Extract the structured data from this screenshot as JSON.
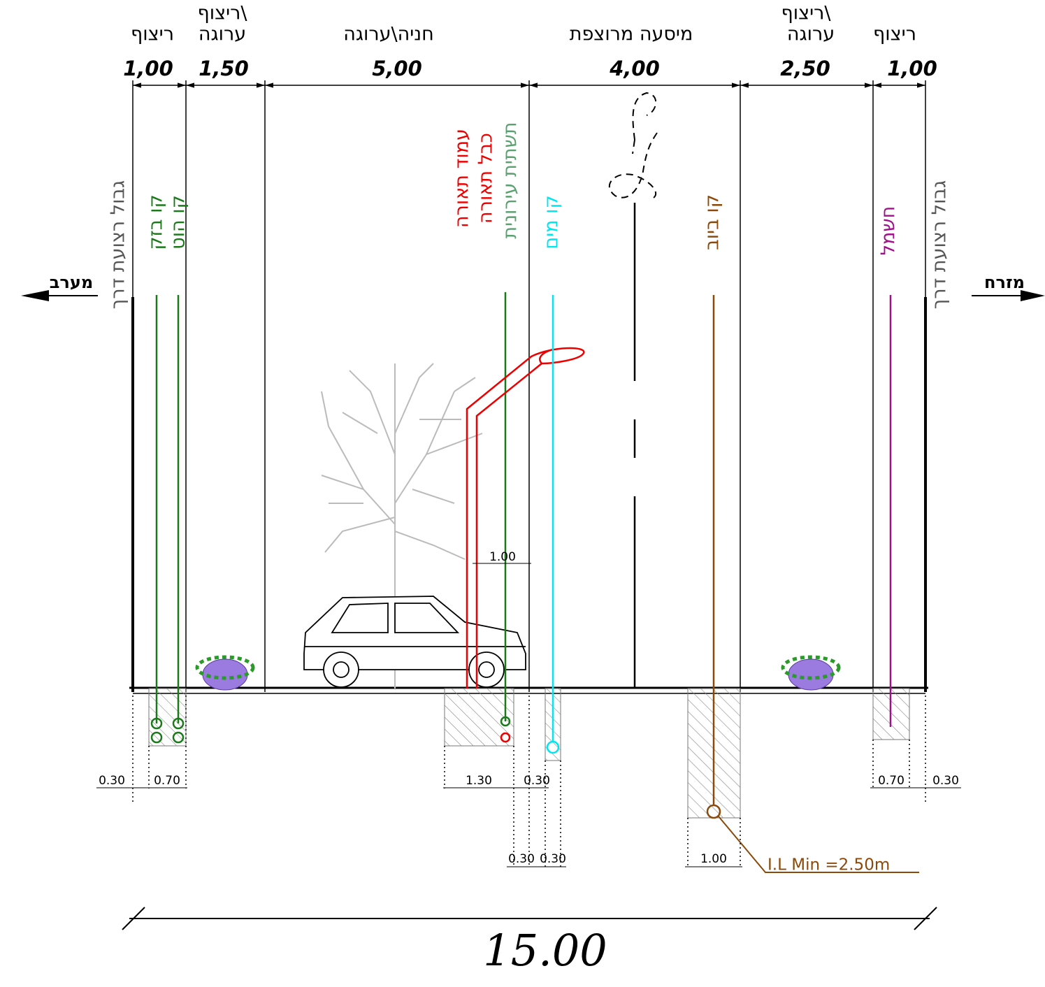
{
  "zones": [
    {
      "label": [
        "ריצוף"
      ],
      "width": "1,00"
    },
    {
      "label": [
        "ריצוף\\",
        "ערוגה"
      ],
      "width": "1,50"
    },
    {
      "label": [
        "חניה\\ערוגה"
      ],
      "width": "5,00"
    },
    {
      "label": [
        "מיסעה מרוצפת"
      ],
      "width": "4,00"
    },
    {
      "label": [
        "ריצוף\\",
        "ערוגה"
      ],
      "width": "2,50"
    },
    {
      "label": [
        "ריצוף"
      ],
      "width": "1,00"
    }
  ],
  "directions": {
    "west": "מערב",
    "east": "מזרח"
  },
  "boundary": {
    "left": "גבול רצועת דרך",
    "right": "גבול רצועת דרך"
  },
  "utilities": {
    "bezeq": "קו בזק",
    "hot": "קו הוט",
    "lamp_pole": "עמוד תאורה",
    "lamp_cable": "כבל תאורה",
    "urban_infra": "תשתית עירונית",
    "water": "קו מים",
    "sewer": "קו ביוב",
    "electric": "חשמל"
  },
  "offsets": {
    "lamp": "1.00",
    "left_edge": "0.30",
    "left_trench": "0.70",
    "lamp_trench": "1.30",
    "gap_a": "0.30",
    "infra_gap": "0.30",
    "water_trench": "0.30",
    "sewer_trench": "1.00",
    "right_trench": "0.70",
    "right_edge": "0.30"
  },
  "sewer_note": "I.L Min =2.50m",
  "total_width": "15.00"
}
